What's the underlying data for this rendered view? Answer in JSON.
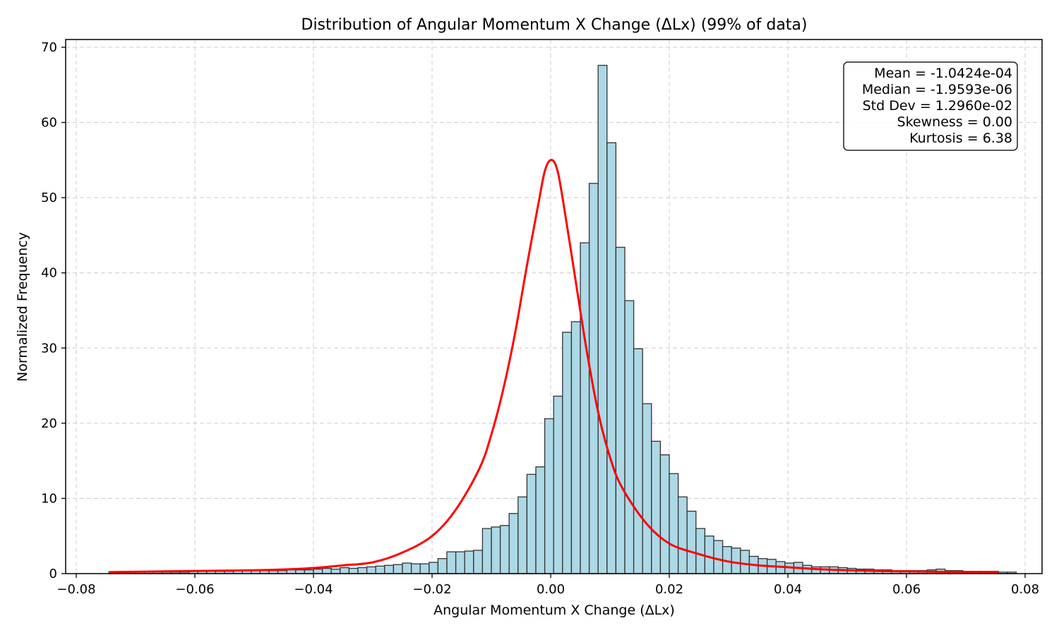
{
  "chart_data": {
    "type": "bar",
    "title": "Distribution of Angular Momentum X Change (ΔLx) (99% of data)",
    "xlabel": "Angular Momentum X Change (ΔLx)",
    "ylabel": "Normalized Frequency",
    "xlim": [
      -0.08,
      0.08
    ],
    "ylim": [
      0,
      70
    ],
    "xticks": [
      -0.08,
      -0.06,
      -0.04,
      -0.02,
      0.0,
      0.02,
      0.04,
      0.06,
      0.08
    ],
    "xtick_labels": [
      "−0.08",
      "−0.06",
      "−0.04",
      "−0.02",
      "0.00",
      "0.02",
      "0.04",
      "0.06",
      "0.08"
    ],
    "yticks": [
      0,
      10,
      20,
      30,
      40,
      50,
      60,
      70
    ],
    "ytick_labels": [
      "0",
      "10",
      "20",
      "30",
      "40",
      "50",
      "60",
      "70"
    ],
    "grid": true,
    "histogram": {
      "bin_start": -0.0745,
      "bin_width": 0.0015,
      "values": [
        0.2,
        0.2,
        0.2,
        0.2,
        0.2,
        0.2,
        0.2,
        0.2,
        0.2,
        0.3,
        0.3,
        0.3,
        0.3,
        0.3,
        0.4,
        0.4,
        0.4,
        0.4,
        0.4,
        0.4,
        0.5,
        0.5,
        0.5,
        0.6,
        0.7,
        0.6,
        0.8,
        0.7,
        0.8,
        0.9,
        1.0,
        1.1,
        1.2,
        1.4,
        1.3,
        1.3,
        1.5,
        2.0,
        2.9,
        2.9,
        3.0,
        3.1,
        6.0,
        6.2,
        6.4,
        8.0,
        10.2,
        13.2,
        14.2,
        20.6,
        23.6,
        32.1,
        33.5,
        44.0,
        51.9,
        67.6,
        57.3,
        43.4,
        36.3,
        29.9,
        22.6,
        17.6,
        15.8,
        13.3,
        10.2,
        8.3,
        6.0,
        5.0,
        4.4,
        3.6,
        3.4,
        3.1,
        2.3,
        2.0,
        1.9,
        1.6,
        1.4,
        1.5,
        1.1,
        0.9,
        0.9,
        0.9,
        0.8,
        0.7,
        0.6,
        0.6,
        0.5,
        0.5,
        0.4,
        0.4,
        0.4,
        0.4,
        0.5,
        0.6,
        0.4,
        0.4,
        0.3,
        0.3,
        0.3,
        0.3,
        0.2,
        0.2
      ]
    },
    "kde": {
      "x": [
        -0.0745,
        -0.07,
        -0.065,
        -0.06,
        -0.055,
        -0.05,
        -0.045,
        -0.04,
        -0.035,
        -0.03,
        -0.025,
        -0.02,
        -0.016,
        -0.012,
        -0.01,
        -0.008,
        -0.006,
        -0.004,
        -0.002,
        -0.001,
        0.0,
        0.001,
        0.002,
        0.004,
        0.006,
        0.008,
        0.01,
        0.012,
        0.016,
        0.02,
        0.025,
        0.03,
        0.035,
        0.04,
        0.045,
        0.05,
        0.055,
        0.06,
        0.065,
        0.07,
        0.0755
      ],
      "y": [
        0.2,
        0.25,
        0.3,
        0.35,
        0.4,
        0.45,
        0.55,
        0.75,
        1.1,
        1.5,
        2.8,
        5.0,
        8.5,
        14.0,
        18.5,
        24.5,
        32.0,
        41.0,
        49.5,
        53.5,
        55.0,
        54.0,
        50.0,
        40.0,
        30.0,
        21.5,
        15.5,
        11.5,
        6.8,
        4.0,
        2.6,
        1.6,
        1.1,
        0.85,
        0.6,
        0.45,
        0.35,
        0.3,
        0.25,
        0.2,
        0.2
      ]
    },
    "stats_box": [
      "Mean = -1.0424e-04",
      "Median = -1.9593e-06",
      "Std Dev = 1.2960e-02",
      "Skewness = 0.00",
      "Kurtosis = 6.38"
    ],
    "legend_placement": "top-right",
    "colors": {
      "bar_fill": "#add8e6",
      "bar_edge": "#333333",
      "kde_line": "#ff0000",
      "grid": "#cccccc"
    }
  }
}
